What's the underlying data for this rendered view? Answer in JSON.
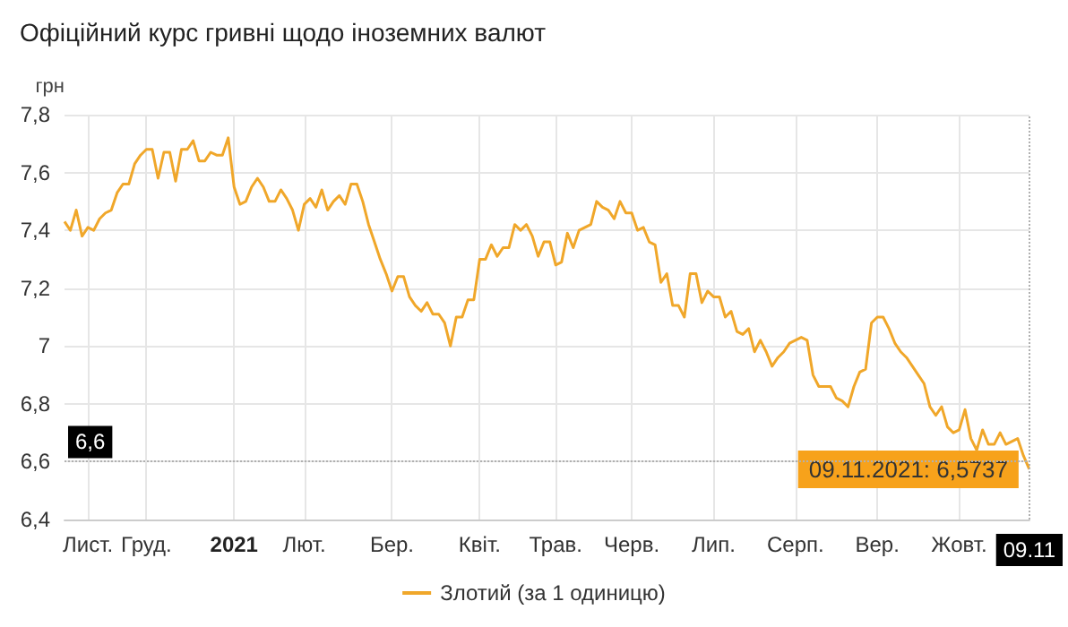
{
  "chart_data": {
    "type": "line",
    "title": "Офіційний курс гривні щодо іноземних валют",
    "ylabel": "грн",
    "categories": [
      null,
      null,
      null,
      null,
      "Лист.",
      null,
      null,
      null,
      null,
      null,
      null,
      null,
      null,
      null,
      "Груд.",
      null,
      null,
      null,
      null,
      null,
      null,
      null,
      null,
      null,
      null,
      null,
      null,
      null,
      null,
      "2021",
      null,
      null,
      null,
      null,
      null,
      null,
      null,
      null,
      null,
      null,
      null,
      "Лют.",
      null,
      null,
      null,
      null,
      null,
      null,
      null,
      null,
      null,
      null,
      null,
      null,
      null,
      null,
      "Бер.",
      null,
      null,
      null,
      null,
      null,
      null,
      null,
      null,
      null,
      null,
      null,
      null,
      null,
      null,
      "Квіт.",
      null,
      null,
      null,
      null,
      null,
      null,
      null,
      null,
      null,
      null,
      null,
      null,
      "Трав.",
      null,
      null,
      null,
      null,
      null,
      null,
      null,
      null,
      null,
      null,
      null,
      null,
      "Черв.",
      null,
      null,
      null,
      null,
      null,
      null,
      null,
      null,
      null,
      null,
      null,
      null,
      null,
      "Лип.",
      null,
      null,
      null,
      null,
      null,
      null,
      null,
      null,
      null,
      null,
      null,
      null,
      null,
      "Серп.",
      null,
      null,
      null,
      null,
      null,
      null,
      null,
      null,
      null,
      null,
      null,
      null,
      null,
      "Вер.",
      null,
      null,
      null,
      null,
      null,
      null,
      null,
      null,
      null,
      null,
      null,
      null,
      null,
      "Жовт.",
      null,
      null,
      null,
      null,
      null,
      null,
      null,
      null,
      null,
      null,
      null,
      "09.11"
    ],
    "series": [
      {
        "name": "Злотий (за 1 одиницю)",
        "color": "#f0a72a",
        "values": [
          7.43,
          7.4,
          7.47,
          7.38,
          7.41,
          7.4,
          7.44,
          7.46,
          7.47,
          7.53,
          7.56,
          7.56,
          7.63,
          7.66,
          7.68,
          7.68,
          7.58,
          7.67,
          7.67,
          7.57,
          7.68,
          7.68,
          7.71,
          7.64,
          7.64,
          7.67,
          7.66,
          7.66,
          7.72,
          7.55,
          7.49,
          7.5,
          7.55,
          7.58,
          7.55,
          7.5,
          7.5,
          7.54,
          7.51,
          7.47,
          7.4,
          7.49,
          7.51,
          7.48,
          7.54,
          7.47,
          7.5,
          7.52,
          7.49,
          7.56,
          7.56,
          7.5,
          7.42,
          7.36,
          7.3,
          7.25,
          7.19,
          7.24,
          7.24,
          7.17,
          7.14,
          7.12,
          7.15,
          7.11,
          7.11,
          7.08,
          7.0,
          7.1,
          7.1,
          7.16,
          7.16,
          7.3,
          7.3,
          7.35,
          7.31,
          7.34,
          7.34,
          7.42,
          7.4,
          7.42,
          7.38,
          7.31,
          7.36,
          7.36,
          7.28,
          7.29,
          7.39,
          7.34,
          7.4,
          7.41,
          7.42,
          7.5,
          7.48,
          7.47,
          7.44,
          7.5,
          7.46,
          7.46,
          7.4,
          7.41,
          7.36,
          7.35,
          7.22,
          7.25,
          7.14,
          7.14,
          7.1,
          7.25,
          7.25,
          7.15,
          7.19,
          7.17,
          7.17,
          7.1,
          7.12,
          7.05,
          7.04,
          7.06,
          6.98,
          7.02,
          6.98,
          6.93,
          6.96,
          6.98,
          7.01,
          7.02,
          7.03,
          7.02,
          6.9,
          6.86,
          6.86,
          6.86,
          6.82,
          6.81,
          6.79,
          6.86,
          6.91,
          6.92,
          7.08,
          7.1,
          7.1,
          7.06,
          7.01,
          6.98,
          6.96,
          6.93,
          6.9,
          6.87,
          6.79,
          6.76,
          6.79,
          6.72,
          6.7,
          6.71,
          6.78,
          6.68,
          6.64,
          6.71,
          6.66,
          6.66,
          6.7,
          6.66,
          6.67,
          6.68,
          6.62,
          6.5737
        ]
      }
    ],
    "ylim": [
      6.4,
      7.8
    ],
    "yticks": [
      {
        "value": 6.4,
        "label": "6,4"
      },
      {
        "value": 6.6,
        "label": "6,6"
      },
      {
        "value": 6.8,
        "label": "6,8"
      },
      7,
      {
        "value": 7.2,
        "label": "7,2"
      },
      {
        "value": 7.4,
        "label": "7,4"
      },
      {
        "value": 7.6,
        "label": "7,6"
      },
      {
        "value": 7.8,
        "label": "7,8"
      }
    ],
    "ref_lines": [
      {
        "axis": "y",
        "value": 6.6,
        "label": "6,6",
        "line_style": "dotted",
        "color": "#b0b0b0"
      },
      {
        "axis": "x",
        "value": "09.11",
        "line_style": "dotted",
        "color": "#b0b0b0"
      }
    ],
    "annotations": [
      {
        "text": "09.11.2021: 6,5737",
        "x": "09.11",
        "y": 6.5737
      }
    ],
    "grid": true,
    "legend": "bottom",
    "marker": "none",
    "line_style": "solid"
  }
}
